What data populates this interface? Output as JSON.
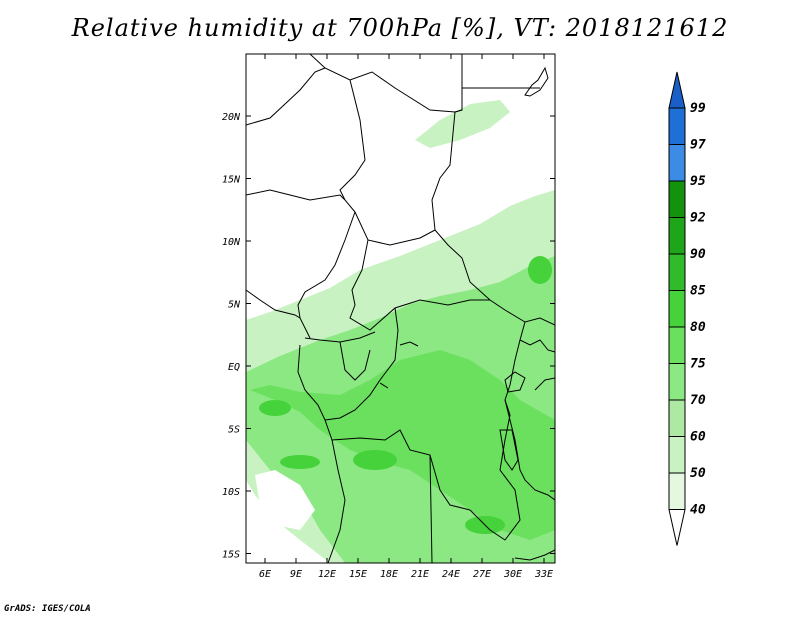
{
  "title": "Relative humidity at 700hPa [%], VT: 2018121612",
  "credit": "GrADS: IGES/COLA",
  "map": {
    "lon_labels": [
      "6E",
      "9E",
      "12E",
      "15E",
      "18E",
      "21E",
      "24E",
      "27E",
      "30E",
      "33E"
    ],
    "lat_labels": [
      "20N",
      "15N",
      "10N",
      "5N",
      "EQ",
      "5S",
      "10S",
      "15S"
    ]
  },
  "colorbar": {
    "levels": [
      "99",
      "97",
      "95",
      "92",
      "90",
      "85",
      "80",
      "75",
      "70",
      "60",
      "50",
      "40"
    ],
    "colors": [
      "#1e6fd6",
      "#3c8ce6",
      "#13920e",
      "#1fa51a",
      "#31bb2a",
      "#46d23a",
      "#6ae05e",
      "#8ce883",
      "#ade9a3",
      "#c9f2c2",
      "#e4f8e0",
      "#ffffff"
    ],
    "over_color": "#1a5fc8",
    "under_color": "#ffffff"
  },
  "colors": {
    "land_outline": "#000000",
    "light_green": "#c9f2c2",
    "mid_green": "#8ce883",
    "dark_green": "#46d23a"
  }
}
